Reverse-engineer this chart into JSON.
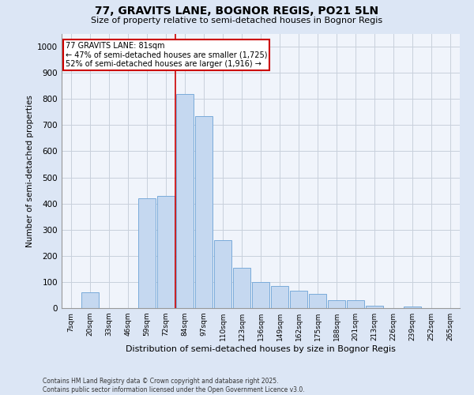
{
  "title": "77, GRAVITS LANE, BOGNOR REGIS, PO21 5LN",
  "subtitle": "Size of property relative to semi-detached houses in Bognor Regis",
  "xlabel": "Distribution of semi-detached houses by size in Bognor Regis",
  "ylabel": "Number of semi-detached properties",
  "categories": [
    "7sqm",
    "20sqm",
    "33sqm",
    "46sqm",
    "59sqm",
    "72sqm",
    "84sqm",
    "97sqm",
    "110sqm",
    "123sqm",
    "136sqm",
    "149sqm",
    "162sqm",
    "175sqm",
    "188sqm",
    "201sqm",
    "213sqm",
    "226sqm",
    "239sqm",
    "252sqm",
    "265sqm"
  ],
  "values": [
    0,
    60,
    0,
    0,
    420,
    430,
    820,
    735,
    260,
    155,
    100,
    85,
    65,
    55,
    30,
    30,
    10,
    0,
    5,
    0,
    0
  ],
  "bar_color": "#c5d8f0",
  "bar_edge_color": "#7aabda",
  "annotation_title": "77 GRAVITS LANE: 81sqm",
  "annotation_line1": "← 47% of semi-detached houses are smaller (1,725)",
  "annotation_line2": "52% of semi-detached houses are larger (1,916) →",
  "annotation_box_color": "#ffffff",
  "annotation_box_edge": "#cc0000",
  "ylim": [
    0,
    1050
  ],
  "yticks": [
    0,
    100,
    200,
    300,
    400,
    500,
    600,
    700,
    800,
    900,
    1000
  ],
  "bg_color": "#dce6f5",
  "plot_bg_color": "#f0f4fb",
  "grid_color": "#c8d0dc",
  "footer1": "Contains HM Land Registry data © Crown copyright and database right 2025.",
  "footer2": "Contains public sector information licensed under the Open Government Licence v3.0.",
  "line_color": "#cc0000",
  "line_index": 6
}
